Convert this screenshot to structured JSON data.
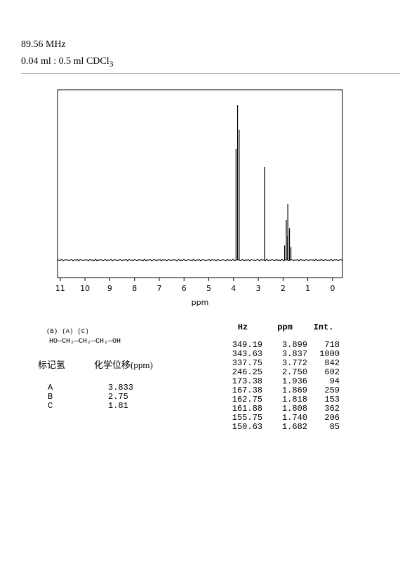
{
  "header": {
    "frequency": "89.56 MHz",
    "sample": {
      "text": "0.04 ml : 0.5 ml CDCl",
      "subscript": "3"
    }
  },
  "chart_data": {
    "type": "stem",
    "x_label": "ppm",
    "x": [
      3.899,
      3.837,
      3.772,
      2.75,
      1.936,
      1.869,
      1.818,
      1.808,
      1.74,
      1.682
    ],
    "values": [
      718,
      1000,
      842,
      602,
      94,
      259,
      153,
      362,
      206,
      85
    ],
    "xlim": [
      11.11,
      -0.4
    ],
    "ylim": [
      -113,
      1100
    ],
    "xticks": [
      11,
      10,
      9,
      8,
      7,
      6,
      5,
      4,
      3,
      2,
      1,
      0
    ],
    "color": "#000000"
  },
  "structure": {
    "labels": [
      "(B)",
      "(A)",
      "(C)"
    ],
    "formula": "HO—CH₂—CH₂—CH₂—OH"
  },
  "assignment": {
    "headers": [
      "标记氢",
      "化学位移(ppm)"
    ],
    "rows": [
      [
        "A",
        "3.833"
      ],
      [
        "B",
        "2.75"
      ],
      [
        "C",
        "1.81"
      ]
    ]
  },
  "peak_table": {
    "headers": [
      "Hz",
      "ppm",
      "Int."
    ],
    "rows": [
      [
        "349.19",
        "3.899",
        "718"
      ],
      [
        "343.63",
        "3.837",
        "1000"
      ],
      [
        "337.75",
        "3.772",
        "842"
      ],
      [
        "246.25",
        "2.750",
        "602"
      ],
      [
        "173.38",
        "1.936",
        "94"
      ],
      [
        "167.38",
        "1.869",
        "259"
      ],
      [
        "162.75",
        "1.818",
        "153"
      ],
      [
        "161.88",
        "1.808",
        "362"
      ],
      [
        "155.75",
        "1.740",
        "206"
      ],
      [
        "150.63",
        "1.682",
        "85"
      ]
    ]
  }
}
